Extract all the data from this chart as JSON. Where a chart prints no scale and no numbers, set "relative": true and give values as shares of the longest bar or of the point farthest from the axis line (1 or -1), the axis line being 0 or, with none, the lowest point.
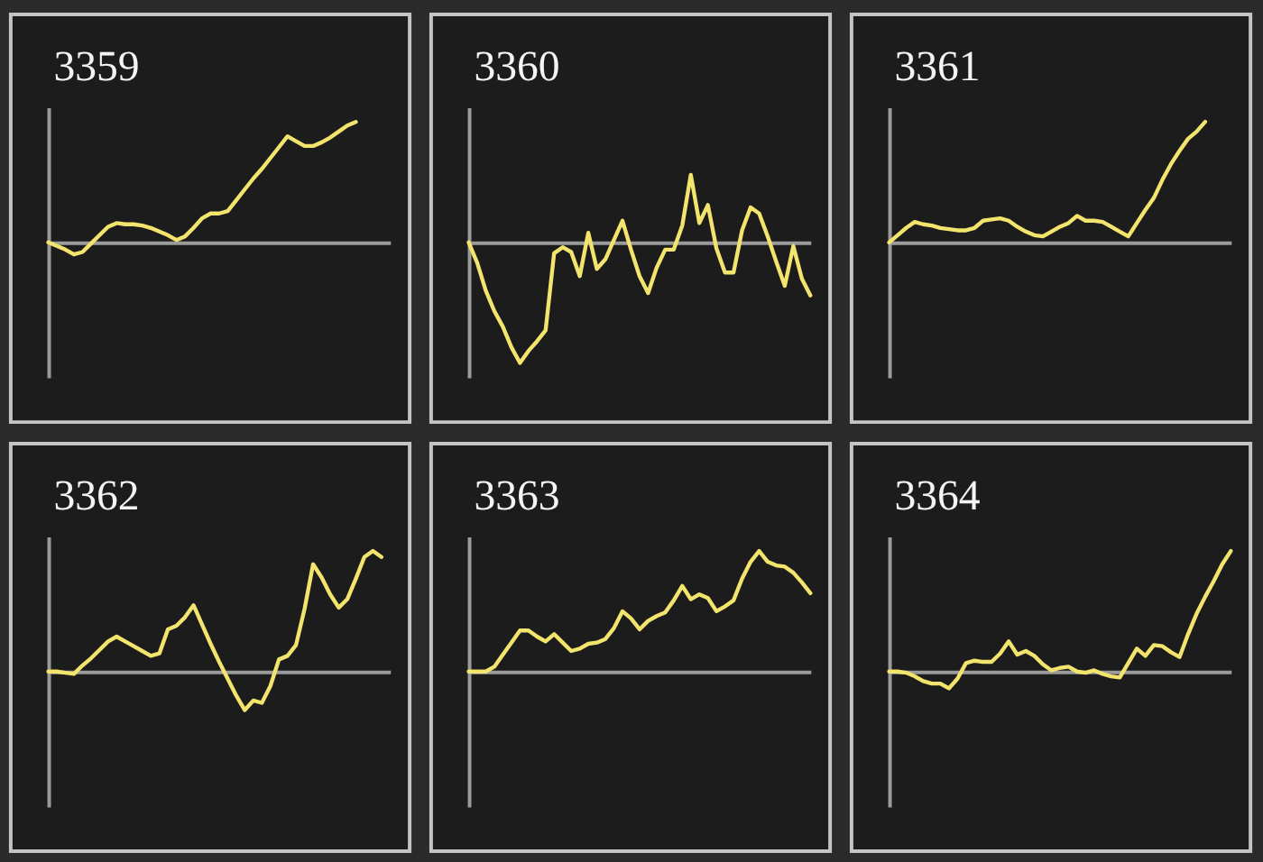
{
  "chart_data": [
    {
      "type": "line",
      "title": "3359",
      "relative": true,
      "color": "#f2e46c",
      "categories": [
        null,
        null,
        null,
        null,
        null,
        null,
        null,
        null,
        null,
        null,
        null,
        null,
        null,
        null,
        null,
        null,
        null,
        null,
        null,
        null,
        null,
        null,
        null,
        null,
        null,
        null,
        null,
        null,
        null,
        null,
        null,
        null,
        null,
        null,
        null,
        null,
        null,
        null,
        null,
        null,
        null
      ],
      "values": [
        0,
        -0.03,
        -0.06,
        -0.1,
        -0.08,
        -0.01,
        0.06,
        0.13,
        0.16,
        0.15,
        0.15,
        0.14,
        0.12,
        0.09,
        0.06,
        0.02,
        0.05,
        0.12,
        0.2,
        0.24,
        0.24,
        0.26,
        0.35,
        0.44,
        0.53,
        0.61,
        0.7,
        0.79,
        0.88,
        0.84,
        0.8,
        0.8,
        0.83,
        0.87,
        0.92,
        0.97,
        1.0,
        null,
        null,
        null,
        null
      ]
    },
    {
      "type": "line",
      "title": "3360",
      "relative": true,
      "color": "#f2e46c",
      "categories": [
        null,
        null,
        null,
        null,
        null,
        null,
        null,
        null,
        null,
        null,
        null,
        null,
        null,
        null,
        null,
        null,
        null,
        null,
        null,
        null,
        null,
        null,
        null,
        null,
        null,
        null,
        null,
        null,
        null,
        null,
        null,
        null,
        null,
        null,
        null,
        null,
        null,
        null,
        null,
        null,
        null
      ],
      "values": [
        0,
        -0.17,
        -0.4,
        -0.57,
        -0.7,
        -0.87,
        -1.0,
        -0.9,
        -0.82,
        -0.73,
        -0.09,
        -0.04,
        -0.08,
        -0.28,
        0.08,
        -0.22,
        -0.14,
        0.02,
        0.18,
        -0.06,
        -0.28,
        -0.42,
        -0.21,
        -0.06,
        -0.06,
        0.14,
        0.56,
        0.16,
        0.31,
        -0.05,
        -0.25,
        -0.25,
        0.1,
        0.29,
        0.24,
        0.05,
        -0.16,
        -0.36,
        -0.03,
        -0.3,
        -0.44
      ]
    },
    {
      "type": "line",
      "title": "3361",
      "relative": true,
      "color": "#f2e46c",
      "categories": [
        null,
        null,
        null,
        null,
        null,
        null,
        null,
        null,
        null,
        null,
        null,
        null,
        null,
        null,
        null,
        null,
        null,
        null,
        null,
        null,
        null,
        null,
        null,
        null,
        null,
        null,
        null,
        null,
        null,
        null,
        null,
        null,
        null,
        null,
        null,
        null,
        null,
        null,
        null,
        null,
        null
      ],
      "values": [
        0,
        0.06,
        0.12,
        0.17,
        0.15,
        0.14,
        0.12,
        0.11,
        0.1,
        0.1,
        0.12,
        0.18,
        0.19,
        0.2,
        0.18,
        0.13,
        0.09,
        0.06,
        0.05,
        0.09,
        0.13,
        0.16,
        0.22,
        0.18,
        0.18,
        0.17,
        0.13,
        0.09,
        0.05,
        0.16,
        0.27,
        0.37,
        0.52,
        0.65,
        0.76,
        0.86,
        0.92,
        1.0,
        null,
        null,
        null
      ]
    },
    {
      "type": "line",
      "title": "3362",
      "relative": true,
      "color": "#f2e46c",
      "categories": [
        null,
        null,
        null,
        null,
        null,
        null,
        null,
        null,
        null,
        null,
        null,
        null,
        null,
        null,
        null,
        null,
        null,
        null,
        null,
        null,
        null,
        null,
        null,
        null,
        null,
        null,
        null,
        null,
        null,
        null,
        null,
        null,
        null,
        null,
        null,
        null,
        null,
        null,
        null,
        null,
        null
      ],
      "values": [
        0,
        0,
        -0.01,
        -0.02,
        0.05,
        0.11,
        0.18,
        0.25,
        0.29,
        0.25,
        0.21,
        0.17,
        0.13,
        0.15,
        0.35,
        0.38,
        0.45,
        0.55,
        0.39,
        0.23,
        0.08,
        -0.06,
        -0.2,
        -0.32,
        -0.24,
        -0.26,
        -0.12,
        0.1,
        0.13,
        0.22,
        0.52,
        0.89,
        0.78,
        0.64,
        0.53,
        0.6,
        0.77,
        0.95,
        1.0,
        0.95,
        null
      ]
    },
    {
      "type": "line",
      "title": "3363",
      "relative": true,
      "color": "#f2e46c",
      "categories": [
        null,
        null,
        null,
        null,
        null,
        null,
        null,
        null,
        null,
        null,
        null,
        null,
        null,
        null,
        null,
        null,
        null,
        null,
        null,
        null,
        null,
        null,
        null,
        null,
        null,
        null,
        null,
        null,
        null,
        null,
        null,
        null,
        null,
        null,
        null,
        null,
        null,
        null,
        null,
        null,
        null
      ],
      "values": [
        0,
        0,
        0,
        0.04,
        0.14,
        0.24,
        0.34,
        0.34,
        0.29,
        0.25,
        0.31,
        0.24,
        0.17,
        0.19,
        0.23,
        0.24,
        0.27,
        0.36,
        0.5,
        0.44,
        0.35,
        0.42,
        0.46,
        0.49,
        0.59,
        0.71,
        0.6,
        0.64,
        0.61,
        0.5,
        0.54,
        0.59,
        0.77,
        0.91,
        1.0,
        0.91,
        0.88,
        0.87,
        0.82,
        0.74,
        0.65
      ]
    },
    {
      "type": "line",
      "title": "3364",
      "relative": true,
      "color": "#f2e46c",
      "categories": [
        null,
        null,
        null,
        null,
        null,
        null,
        null,
        null,
        null,
        null,
        null,
        null,
        null,
        null,
        null,
        null,
        null,
        null,
        null,
        null,
        null,
        null,
        null,
        null,
        null,
        null,
        null,
        null,
        null,
        null,
        null,
        null,
        null,
        null,
        null,
        null,
        null,
        null,
        null,
        null,
        null
      ],
      "values": [
        0,
        0,
        -0.01,
        -0.04,
        -0.08,
        -0.1,
        -0.1,
        -0.14,
        -0.06,
        0.07,
        0.09,
        0.08,
        0.08,
        0.15,
        0.25,
        0.14,
        0.17,
        0.13,
        0.06,
        0.01,
        0.03,
        0.04,
        0.0,
        -0.01,
        0.01,
        -0.02,
        -0.04,
        -0.05,
        0.07,
        0.19,
        0.13,
        0.22,
        0.21,
        0.16,
        0.12,
        0.31,
        0.48,
        0.62,
        0.75,
        0.89,
        1.0
      ]
    }
  ]
}
